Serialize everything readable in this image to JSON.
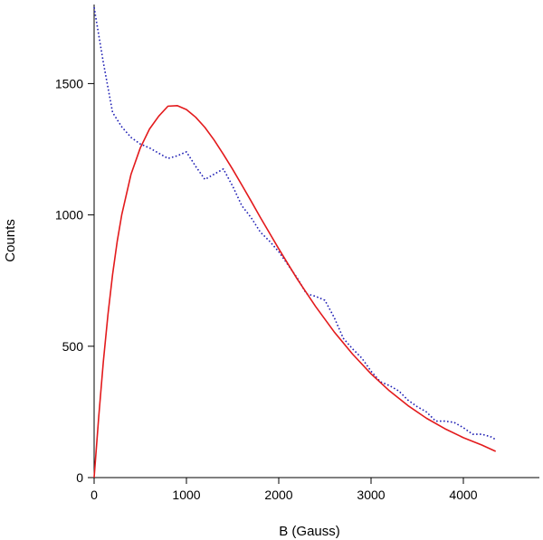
{
  "chart_data": {
    "type": "line",
    "title": "",
    "xlabel": "B (Gauss)",
    "ylabel": "Counts",
    "xlim": [
      0,
      4500
    ],
    "ylim": [
      0,
      1750
    ],
    "xticks": [
      0,
      1000,
      2000,
      3000,
      4000
    ],
    "yticks": [
      0,
      500,
      1000,
      1500
    ],
    "xtick_labels": [
      "0",
      "1000",
      "2000",
      "3000",
      "4000"
    ],
    "ytick_labels": [
      "0",
      "500",
      "1000",
      "1500"
    ],
    "grid": false,
    "legend": "none",
    "series": [
      {
        "style": "dotted",
        "color": "#1f1fb4",
        "x": [
          0,
          100,
          200,
          300,
          400,
          500,
          600,
          700,
          800,
          900,
          1000,
          1100,
          1200,
          1300,
          1400,
          1500,
          1600,
          1700,
          1800,
          1900,
          2000,
          2100,
          2200,
          2300,
          2400,
          2500,
          2600,
          2700,
          2800,
          2900,
          3000,
          3100,
          3200,
          3300,
          3400,
          3500,
          3600,
          3700,
          3800,
          3900,
          4000,
          4100,
          4200,
          4300,
          4350
        ],
        "y": [
          1790,
          1580,
          1390,
          1335,
          1295,
          1270,
          1255,
          1235,
          1215,
          1225,
          1240,
          1185,
          1135,
          1155,
          1175,
          1110,
          1035,
          990,
          935,
          900,
          860,
          810,
          760,
          700,
          690,
          675,
          610,
          530,
          490,
          455,
          405,
          365,
          350,
          330,
          295,
          270,
          250,
          215,
          215,
          210,
          190,
          165,
          165,
          155,
          145
        ]
      },
      {
        "style": "solid",
        "color": "#e31a1c",
        "x": [
          0,
          50,
          100,
          150,
          200,
          250,
          300,
          400,
          500,
          600,
          700,
          800,
          900,
          1000,
          1100,
          1200,
          1300,
          1400,
          1500,
          1600,
          1700,
          1800,
          1900,
          2000,
          2200,
          2400,
          2600,
          2800,
          3000,
          3200,
          3400,
          3600,
          3800,
          4000,
          4200,
          4350
        ],
        "y": [
          0,
          232,
          442,
          621,
          773,
          899,
          1002,
          1155,
          1255,
          1327,
          1376,
          1414,
          1416,
          1401,
          1372,
          1333,
          1285,
          1231,
          1174,
          1114,
          1053,
          991,
          931,
          871,
          756,
          651,
          555,
          470,
          395,
          330,
          274,
          226,
          186,
          152,
          124,
          100
        ]
      }
    ]
  }
}
